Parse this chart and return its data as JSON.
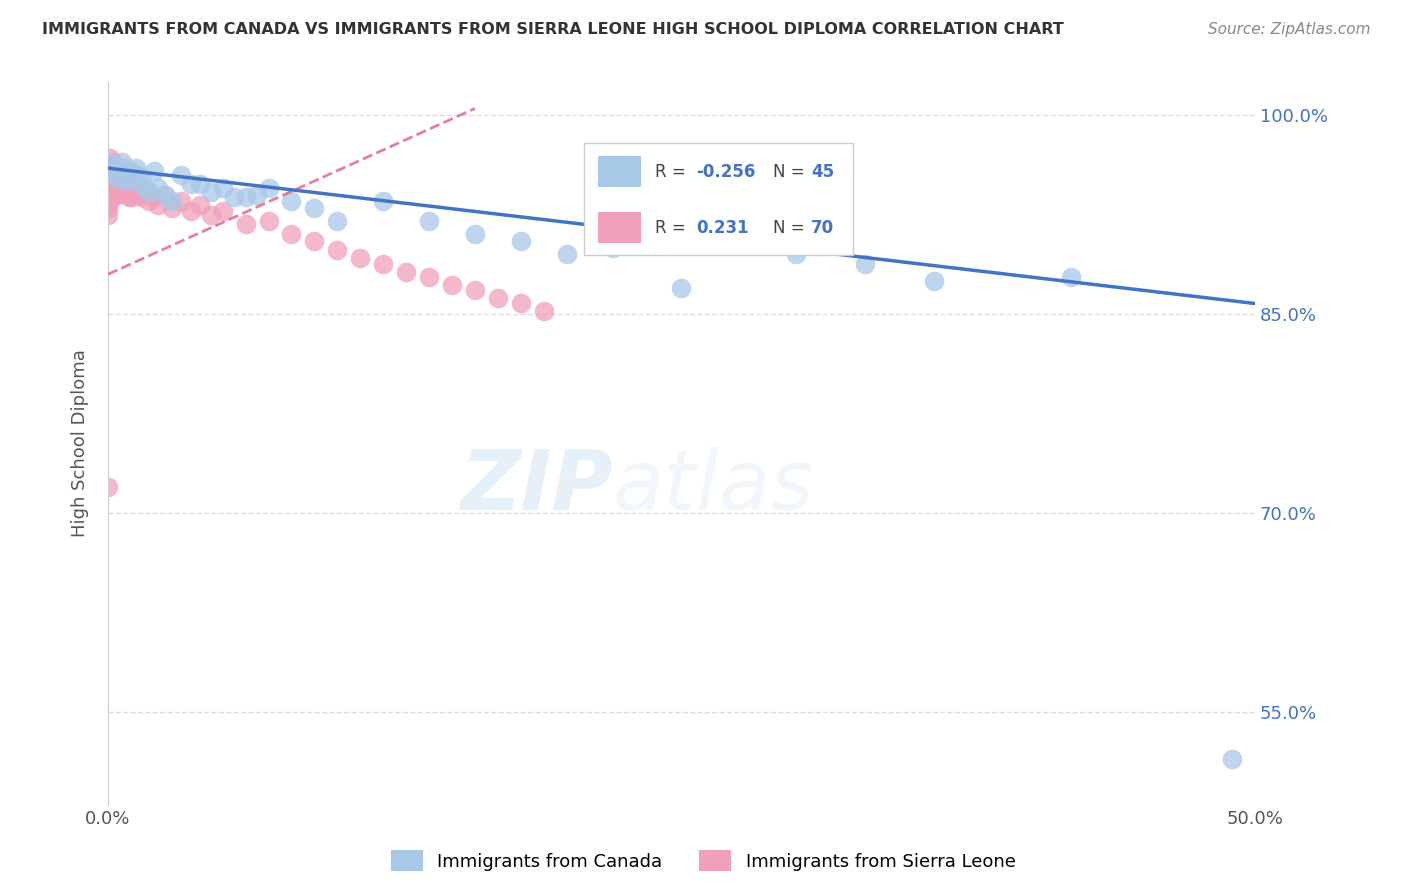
{
  "title": "IMMIGRANTS FROM CANADA VS IMMIGRANTS FROM SIERRA LEONE HIGH SCHOOL DIPLOMA CORRELATION CHART",
  "source": "Source: ZipAtlas.com",
  "ylabel": "High School Diploma",
  "xmin": 0.0,
  "xmax": 0.5,
  "ymin": 0.48,
  "ymax": 1.025,
  "ytick_pos": [
    1.0,
    0.85,
    0.7,
    0.55
  ],
  "ytick_labels": [
    "100.0%",
    "85.0%",
    "70.0%",
    "55.0%"
  ],
  "r_canada": "-0.256",
  "n_canada": "45",
  "r_sierra": "0.231",
  "n_sierra": "70",
  "color_canada": "#a8c8e8",
  "color_sierra": "#f0a0b8",
  "color_line_canada": "#4472c4",
  "color_line_sierra": "#e06080",
  "scatter_canada_x": [
    0.001,
    0.002,
    0.003,
    0.004,
    0.005,
    0.006,
    0.007,
    0.008,
    0.009,
    0.01,
    0.011,
    0.012,
    0.013,
    0.015,
    0.016,
    0.018,
    0.02,
    0.022,
    0.025,
    0.028,
    0.032,
    0.036,
    0.04,
    0.045,
    0.05,
    0.055,
    0.06,
    0.065,
    0.07,
    0.08,
    0.09,
    0.1,
    0.12,
    0.14,
    0.16,
    0.18,
    0.2,
    0.22,
    0.25,
    0.28,
    0.3,
    0.33,
    0.36,
    0.42,
    0.49
  ],
  "scatter_canada_y": [
    0.964,
    0.96,
    0.958,
    0.955,
    0.952,
    0.965,
    0.96,
    0.955,
    0.95,
    0.958,
    0.955,
    0.96,
    0.955,
    0.952,
    0.945,
    0.942,
    0.958,
    0.945,
    0.94,
    0.935,
    0.955,
    0.948,
    0.948,
    0.942,
    0.945,
    0.938,
    0.938,
    0.94,
    0.945,
    0.935,
    0.93,
    0.92,
    0.935,
    0.92,
    0.91,
    0.905,
    0.895,
    0.9,
    0.87,
    0.91,
    0.895,
    0.888,
    0.875,
    0.878,
    0.515
  ],
  "scatter_sierra_x": [
    0.0,
    0.0,
    0.0,
    0.0,
    0.0,
    0.0,
    0.0,
    0.0,
    0.0,
    0.0,
    0.001,
    0.001,
    0.001,
    0.001,
    0.001,
    0.001,
    0.001,
    0.002,
    0.002,
    0.002,
    0.002,
    0.003,
    0.003,
    0.003,
    0.004,
    0.004,
    0.004,
    0.005,
    0.005,
    0.005,
    0.006,
    0.006,
    0.007,
    0.007,
    0.008,
    0.008,
    0.009,
    0.009,
    0.01,
    0.01,
    0.011,
    0.012,
    0.013,
    0.014,
    0.015,
    0.016,
    0.018,
    0.02,
    0.022,
    0.025,
    0.028,
    0.032,
    0.036,
    0.04,
    0.045,
    0.05,
    0.06,
    0.07,
    0.08,
    0.09,
    0.1,
    0.11,
    0.12,
    0.13,
    0.14,
    0.15,
    0.16,
    0.17,
    0.18,
    0.19
  ],
  "scatter_sierra_y": [
    0.962,
    0.958,
    0.955,
    0.95,
    0.945,
    0.94,
    0.935,
    0.93,
    0.925,
    0.72,
    0.968,
    0.962,
    0.958,
    0.955,
    0.948,
    0.942,
    0.935,
    0.965,
    0.96,
    0.955,
    0.94,
    0.96,
    0.95,
    0.94,
    0.96,
    0.95,
    0.94,
    0.958,
    0.95,
    0.942,
    0.955,
    0.945,
    0.958,
    0.945,
    0.952,
    0.942,
    0.95,
    0.938,
    0.95,
    0.938,
    0.945,
    0.948,
    0.94,
    0.945,
    0.938,
    0.942,
    0.935,
    0.938,
    0.932,
    0.94,
    0.93,
    0.935,
    0.928,
    0.932,
    0.925,
    0.928,
    0.918,
    0.92,
    0.91,
    0.905,
    0.898,
    0.892,
    0.888,
    0.882,
    0.878,
    0.872,
    0.868,
    0.862,
    0.858,
    0.852
  ],
  "watermark_zip": "ZIP",
  "watermark_atlas": "atlas",
  "grid_color": "#dddddd",
  "background_color": "#ffffff"
}
